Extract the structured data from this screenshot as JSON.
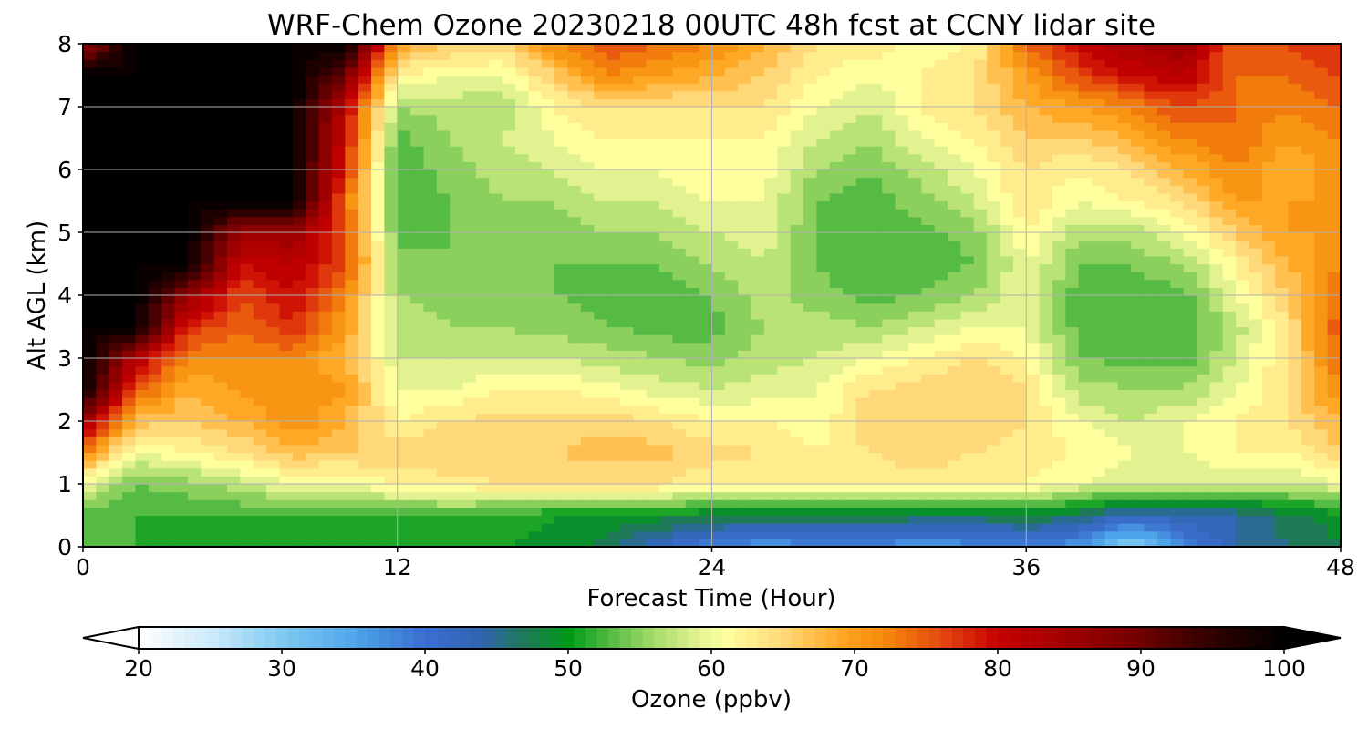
{
  "chart_data": {
    "type": "heatmap",
    "title": "WRF-Chem Ozone  20230218 00UTC 48h fcst at CCNY lidar site",
    "xlabel": "Forecast Time (Hour)",
    "ylabel": "Alt AGL (km)",
    "xlim": [
      0,
      48
    ],
    "ylim": [
      0,
      8
    ],
    "x_ticks": [
      0,
      12,
      24,
      36,
      48
    ],
    "y_ticks": [
      0,
      1,
      2,
      3,
      4,
      5,
      6,
      7,
      8
    ],
    "grid": true,
    "colorbar": {
      "label": "Ozone  (ppbv)",
      "min": 20,
      "max": 100,
      "ticks": [
        20,
        30,
        40,
        50,
        60,
        70,
        80,
        90,
        100
      ],
      "extend": "both",
      "placement": "bottom",
      "color_stops": [
        {
          "value": 20,
          "color": "#ffffff"
        },
        {
          "value": 25,
          "color": "#cdeafa"
        },
        {
          "value": 30,
          "color": "#7fcaf2"
        },
        {
          "value": 35,
          "color": "#4ea6ea"
        },
        {
          "value": 40,
          "color": "#3a6fcf"
        },
        {
          "value": 44,
          "color": "#3064b0"
        },
        {
          "value": 47,
          "color": "#1e7a56"
        },
        {
          "value": 50,
          "color": "#009a18"
        },
        {
          "value": 53,
          "color": "#55bb44"
        },
        {
          "value": 56,
          "color": "#a6db68"
        },
        {
          "value": 59,
          "color": "#e2f290"
        },
        {
          "value": 61,
          "color": "#ffff9e"
        },
        {
          "value": 65,
          "color": "#ffd87a"
        },
        {
          "value": 69,
          "color": "#ffa826"
        },
        {
          "value": 72,
          "color": "#f58b0a"
        },
        {
          "value": 76,
          "color": "#e54a10"
        },
        {
          "value": 80,
          "color": "#c80000"
        },
        {
          "value": 85,
          "color": "#a00000"
        },
        {
          "value": 90,
          "color": "#6e0000"
        },
        {
          "value": 95,
          "color": "#300000"
        },
        {
          "value": 100,
          "color": "#000000"
        }
      ]
    },
    "columns": [
      {
        "hour": 0,
        "ozone": [
          54,
          53,
          60,
          72,
          85,
          100,
          100,
          100,
          100,
          100,
          100,
          100,
          100,
          100,
          100,
          100,
          85
        ]
      },
      {
        "hour": 2,
        "ozone": [
          52,
          52,
          54,
          60,
          67,
          76,
          82,
          100,
          100,
          100,
          100,
          100,
          100,
          100,
          100,
          100,
          100
        ]
      },
      {
        "hour": 4,
        "ozone": [
          51,
          52,
          55,
          62,
          66,
          68,
          72,
          78,
          86,
          100,
          100,
          100,
          100,
          100,
          100,
          100,
          100
        ]
      },
      {
        "hour": 6,
        "ozone": [
          51,
          52,
          57,
          64,
          68,
          70,
          72,
          74,
          76,
          80,
          85,
          100,
          100,
          100,
          100,
          100,
          100
        ]
      },
      {
        "hour": 8,
        "ozone": [
          51,
          52,
          60,
          67,
          72,
          72,
          72,
          78,
          80,
          82,
          86,
          100,
          100,
          100,
          100,
          100,
          100
        ]
      },
      {
        "hour": 10,
        "ozone": [
          50,
          52,
          60,
          66,
          68,
          70,
          68,
          70,
          72,
          76,
          76,
          74,
          78,
          80,
          82,
          90,
          100
        ]
      },
      {
        "hour": 12,
        "ozone": [
          50,
          52,
          62,
          66,
          62,
          60,
          58,
          57,
          56,
          55,
          53,
          53,
          52,
          53,
          56,
          62,
          70
        ]
      },
      {
        "hour": 14,
        "ozone": [
          50,
          52,
          63,
          66,
          64,
          60,
          58,
          56,
          55,
          54,
          54,
          54,
          55,
          56,
          57,
          60,
          66
        ]
      },
      {
        "hour": 16,
        "ozone": [
          50,
          51,
          64,
          66,
          65,
          62,
          58,
          56,
          55,
          54,
          55,
          56,
          57,
          58,
          56,
          60,
          65
        ]
      },
      {
        "hour": 18,
        "ozone": [
          49,
          50,
          64,
          66,
          65,
          62,
          58,
          55,
          54,
          54,
          55,
          56,
          58,
          60,
          62,
          66,
          72
        ]
      },
      {
        "hour": 20,
        "ozone": [
          47,
          50,
          64,
          67,
          65,
          61,
          57,
          54,
          53,
          54,
          56,
          58,
          60,
          62,
          64,
          72,
          76
        ]
      },
      {
        "hour": 22,
        "ozone": [
          42,
          49,
          64,
          67,
          64,
          59,
          56,
          53,
          53,
          54,
          56,
          58,
          60,
          62,
          64,
          70,
          74
        ]
      },
      {
        "hour": 24,
        "ozone": [
          38,
          48,
          62,
          65,
          62,
          58,
          55,
          53,
          54,
          56,
          58,
          60,
          62,
          62,
          64,
          68,
          72
        ]
      },
      {
        "hour": 26,
        "ozone": [
          36,
          48,
          62,
          64,
          62,
          59,
          57,
          56,
          57,
          58,
          59,
          60,
          61,
          62,
          64,
          66,
          68
        ]
      },
      {
        "hour": 28,
        "ozone": [
          37,
          48,
          62,
          62,
          60,
          60,
          58,
          57,
          55,
          54,
          54,
          54,
          56,
          58,
          60,
          62,
          64
        ]
      },
      {
        "hour": 30,
        "ozone": [
          37,
          48,
          62,
          64,
          66,
          64,
          60,
          56,
          53,
          52,
          52,
          53,
          54,
          56,
          58,
          60,
          64
        ]
      },
      {
        "hour": 32,
        "ozone": [
          36,
          47,
          62,
          66,
          66,
          65,
          62,
          58,
          54,
          52,
          53,
          55,
          57,
          60,
          62,
          62,
          60
        ]
      },
      {
        "hour": 34,
        "ozone": [
          37,
          47,
          62,
          64,
          66,
          66,
          64,
          60,
          56,
          54,
          55,
          58,
          60,
          62,
          64,
          64,
          62
        ]
      },
      {
        "hour": 36,
        "ozone": [
          38,
          48,
          62,
          63,
          64,
          64,
          62,
          60,
          60,
          60,
          62,
          64,
          64,
          66,
          68,
          70,
          74
        ]
      },
      {
        "hour": 38,
        "ozone": [
          36,
          46,
          60,
          62,
          60,
          57,
          54,
          53,
          53,
          54,
          57,
          60,
          62,
          66,
          70,
          76,
          80
        ]
      },
      {
        "hour": 40,
        "ozone": [
          28,
          42,
          58,
          60,
          58,
          56,
          53,
          52,
          53,
          54,
          57,
          62,
          64,
          68,
          72,
          80,
          84
        ]
      },
      {
        "hour": 42,
        "ozone": [
          38,
          43,
          58,
          60,
          60,
          56,
          53,
          52,
          53,
          56,
          60,
          64,
          68,
          72,
          76,
          82,
          86
        ]
      },
      {
        "hour": 44,
        "ozone": [
          44,
          44,
          58,
          62,
          62,
          60,
          58,
          57,
          60,
          62,
          66,
          70,
          72,
          74,
          74,
          74,
          74
        ]
      },
      {
        "hour": 46,
        "ozone": [
          46,
          47,
          58,
          62,
          64,
          64,
          64,
          64,
          66,
          68,
          70,
          70,
          68,
          70,
          72,
          74,
          76
        ]
      },
      {
        "hour": 48,
        "ozone": [
          48,
          49,
          60,
          66,
          68,
          72,
          74,
          76,
          74,
          72,
          70,
          70,
          72,
          72,
          74,
          76,
          78
        ]
      }
    ],
    "altitude_levels_km": [
      0,
      0.5,
      1,
      1.5,
      2,
      2.5,
      3,
      3.5,
      4,
      4.5,
      5,
      5.5,
      6,
      6.5,
      7,
      7.5,
      8
    ]
  }
}
